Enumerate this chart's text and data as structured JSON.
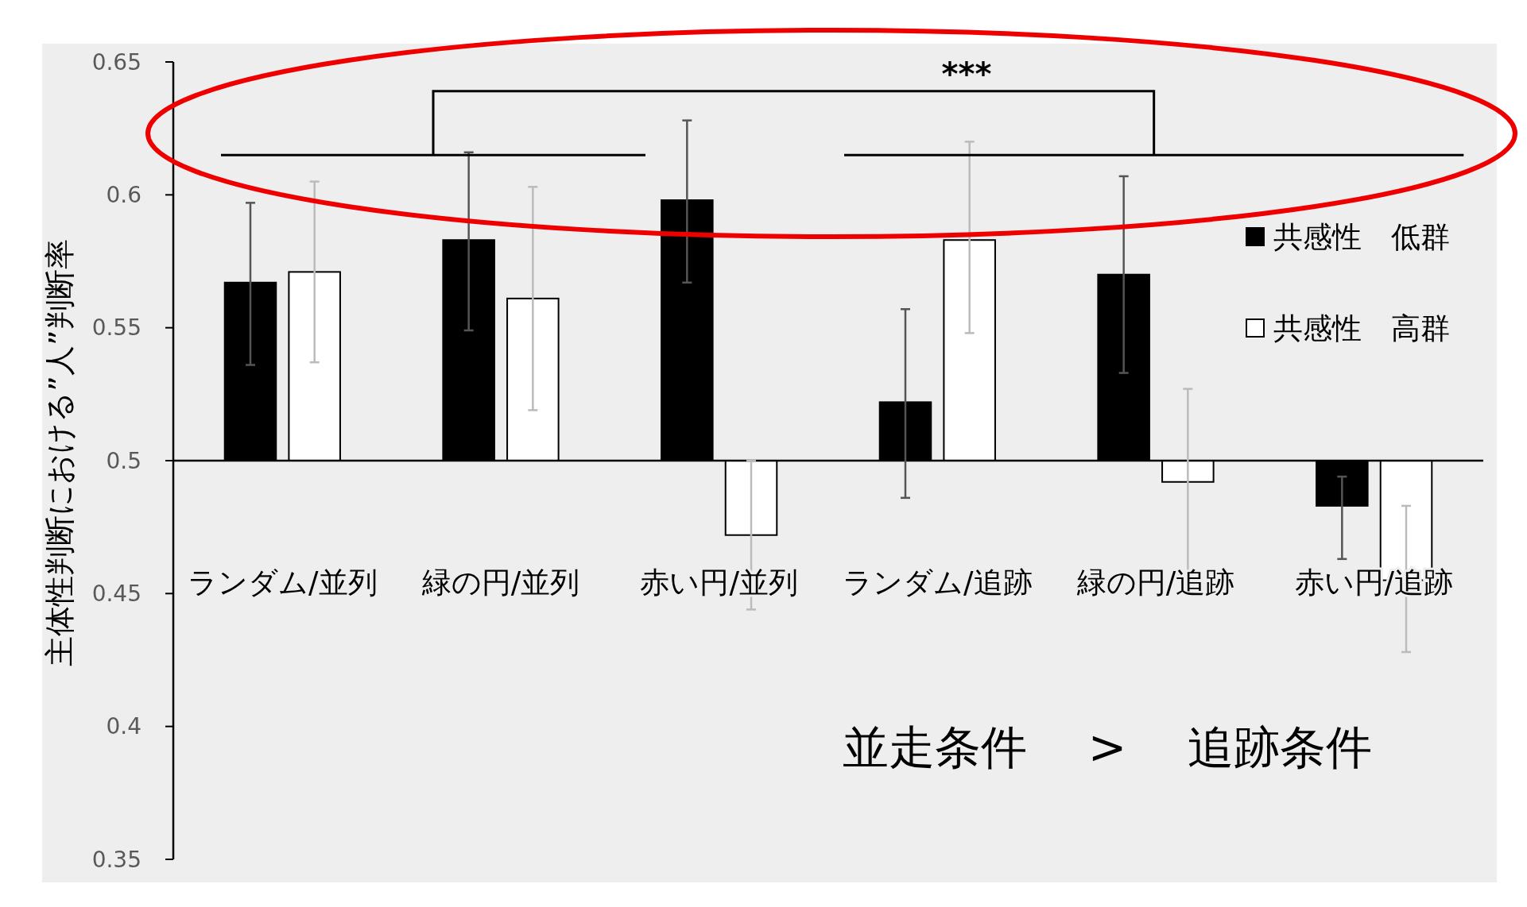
{
  "chart_data": {
    "type": "bar",
    "ylabel": "主体性判断における”人”判断率",
    "categories": [
      "ランダム/並列",
      "緑の円/並列",
      "赤い円/並列",
      "ランダム/追跡",
      "緑の円/追跡",
      "赤い円/追跡"
    ],
    "ylim": [
      0.35,
      0.65
    ],
    "yticks": [
      0.35,
      0.4,
      0.45,
      0.5,
      0.55,
      0.6,
      0.65
    ],
    "series": [
      {
        "name": "共感性　低群",
        "color": "#000000",
        "base": [
          0.5,
          0.5,
          0.5,
          0.5,
          0.5,
          0.5
        ],
        "values": [
          0.067,
          0.083,
          0.098,
          0.022,
          0.07,
          -0.017
        ],
        "errors": [
          [
            0.536,
            0.597
          ],
          [
            0.549,
            0.616
          ],
          [
            0.567,
            0.628
          ],
          [
            0.486,
            0.557
          ],
          [
            0.533,
            0.607
          ],
          [
            0.463,
            0.494
          ]
        ]
      },
      {
        "name": "共感性　高群",
        "color": "#ffffff",
        "base": [
          0.5,
          0.5,
          0.5,
          0.5,
          0.5,
          0.5
        ],
        "values": [
          0.071,
          0.061,
          -0.028,
          0.083,
          -0.008,
          -0.045
        ],
        "errors": [
          [
            0.537,
            0.605
          ],
          [
            0.519,
            0.603
          ],
          [
            0.444,
            0.5
          ],
          [
            0.548,
            0.62
          ],
          [
            0.457,
            0.527
          ],
          [
            0.428,
            0.483
          ]
        ]
      }
    ],
    "legend": "right",
    "annotations": [
      "***",
      "並走条件　 >　 追跡条件"
    ]
  }
}
